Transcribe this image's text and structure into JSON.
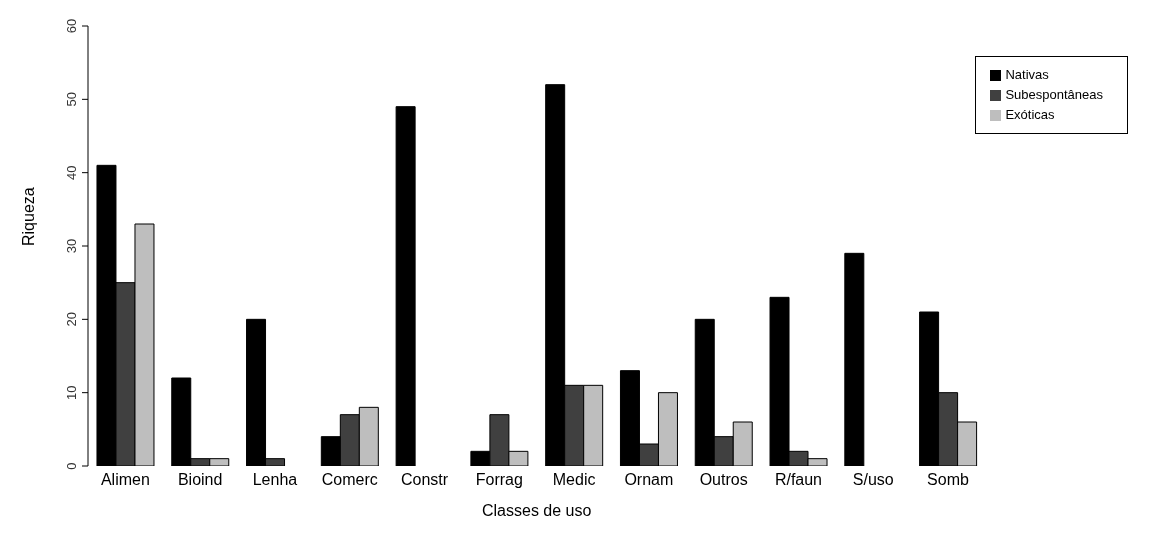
{
  "chart_data": {
    "type": "bar",
    "xlabel": "Classes de uso",
    "ylabel": "Riqueza",
    "categories": [
      "Alimen",
      "Bioind",
      "Lenha",
      "Comerc",
      "Constr",
      "Forrag",
      "Medic",
      "Ornam",
      "Outros",
      "R/faun",
      "S/uso",
      "Somb"
    ],
    "series": [
      {
        "name": "Nativas",
        "color": "#000000",
        "values": [
          41,
          12,
          20,
          4,
          49,
          2,
          52,
          13,
          20,
          23,
          29,
          21
        ]
      },
      {
        "name": "Subespontâneas",
        "color": "#404040",
        "values": [
          25,
          1,
          1,
          7,
          0,
          7,
          11,
          3,
          4,
          2,
          0,
          10
        ]
      },
      {
        "name": "Exóticas",
        "color": "#bebebe",
        "values": [
          33,
          1,
          0,
          8,
          0,
          2,
          11,
          10,
          6,
          1,
          0,
          6
        ]
      }
    ],
    "ylim": [
      0,
      60
    ],
    "yticks": [
      0,
      10,
      20,
      30,
      40,
      50,
      60
    ],
    "grid": false,
    "legend": "top right"
  }
}
